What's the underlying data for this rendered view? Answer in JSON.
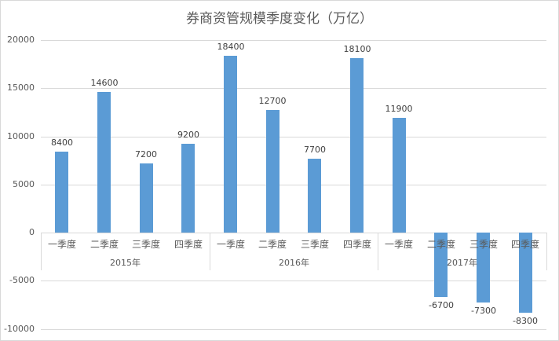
{
  "chart_data": {
    "type": "bar",
    "title": "券商资管规模季度变化（万亿）",
    "xlabel": "",
    "ylabel": "",
    "ylim": [
      -10000,
      20000
    ],
    "yticks": [
      20000,
      15000,
      10000,
      5000,
      0,
      -5000,
      -10000
    ],
    "grid": true,
    "legend": "none",
    "groups": [
      {
        "label": "2015年",
        "categories": [
          "一季度",
          "二季度",
          "三季度",
          "四季度"
        ],
        "values": [
          8400,
          14600,
          7200,
          9200
        ]
      },
      {
        "label": "2016年",
        "categories": [
          "一季度",
          "二季度",
          "三季度",
          "四季度"
        ],
        "values": [
          18400,
          12700,
          7700,
          18100
        ]
      },
      {
        "label": "2017年",
        "categories": [
          "一季度",
          "二季度",
          "三季度",
          "四季度"
        ],
        "values": [
          11900,
          -6700,
          -7300,
          -8300
        ]
      }
    ],
    "categories": [
      "2015年 一季度",
      "2015年 二季度",
      "2015年 三季度",
      "2015年 四季度",
      "2016年 一季度",
      "2016年 二季度",
      "2016年 三季度",
      "2016年 四季度",
      "2017年 一季度",
      "2017年 二季度",
      "2017年 三季度",
      "2017年 四季度"
    ],
    "values": [
      8400,
      14600,
      7200,
      9200,
      18400,
      12700,
      7700,
      18100,
      11900,
      -6700,
      -7300,
      -8300
    ],
    "bar_color": "#5b9bd5"
  }
}
